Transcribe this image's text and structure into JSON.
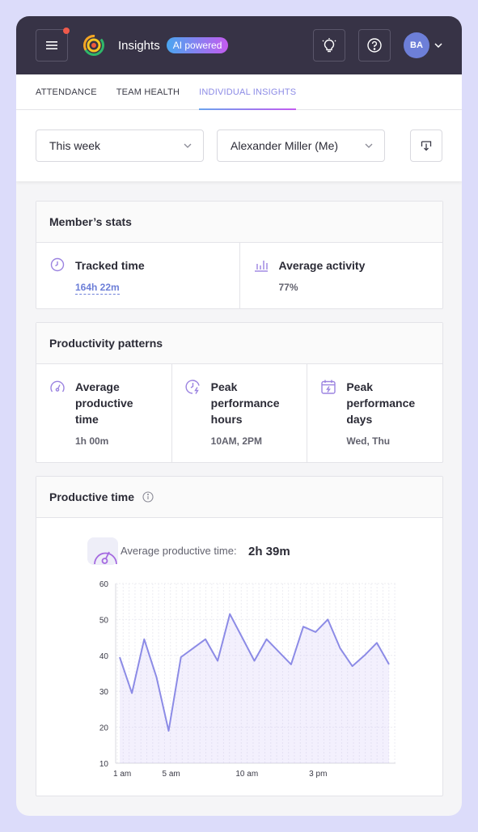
{
  "header": {
    "title": "Insights",
    "badge": "AI powered",
    "avatar_initials": "BA",
    "colors": {
      "bar": "#373346",
      "badge_from": "#4aa6f0",
      "badge_to": "#c45bf0",
      "notification": "#f05a4b"
    }
  },
  "tabs": [
    {
      "label": "ATTENDANCE",
      "active": false
    },
    {
      "label": "TEAM HEALTH",
      "active": false
    },
    {
      "label": "INDIVIDUAL INSIGHTS",
      "active": true
    }
  ],
  "filters": {
    "period": "This week",
    "member": "Alexander Miller (Me)"
  },
  "member_stats": {
    "title": "Member’s stats",
    "tracked_label": "Tracked time",
    "tracked_value": "164h 22m",
    "activity_label": "Average activity",
    "activity_value": "77%"
  },
  "patterns": {
    "title": "Productivity patterns",
    "items": [
      {
        "label": "Average productive time",
        "value": "1h 00m",
        "icon": "speedometer-icon"
      },
      {
        "label": "Peak performance hours",
        "value": "10AM, 2PM",
        "icon": "clock-bolt-icon"
      },
      {
        "label": "Peak performance days",
        "value": "Wed, Thu",
        "icon": "calendar-bolt-icon"
      }
    ]
  },
  "productive_time": {
    "title": "Productive time",
    "avg_label": "Average productive time:",
    "avg_value": "2h 39m"
  },
  "chart_data": {
    "type": "area",
    "ylim": [
      10,
      60
    ],
    "yticks": [
      60,
      50,
      40,
      30,
      20,
      10
    ],
    "xtick_labels": [
      "1 am",
      "5 am",
      "10  am",
      "3 pm"
    ],
    "xtick_index": [
      0,
      4,
      10,
      16
    ],
    "grid": true,
    "color": "#8c8be6",
    "series": [
      {
        "values": [
          39.5,
          29.5,
          44.5,
          34,
          19,
          39.5,
          42,
          44.5,
          38.5,
          51.5,
          45,
          38.5,
          44.5,
          41,
          37.5,
          48,
          46.5,
          50,
          42,
          37,
          40,
          43.5,
          37.5
        ]
      }
    ]
  }
}
